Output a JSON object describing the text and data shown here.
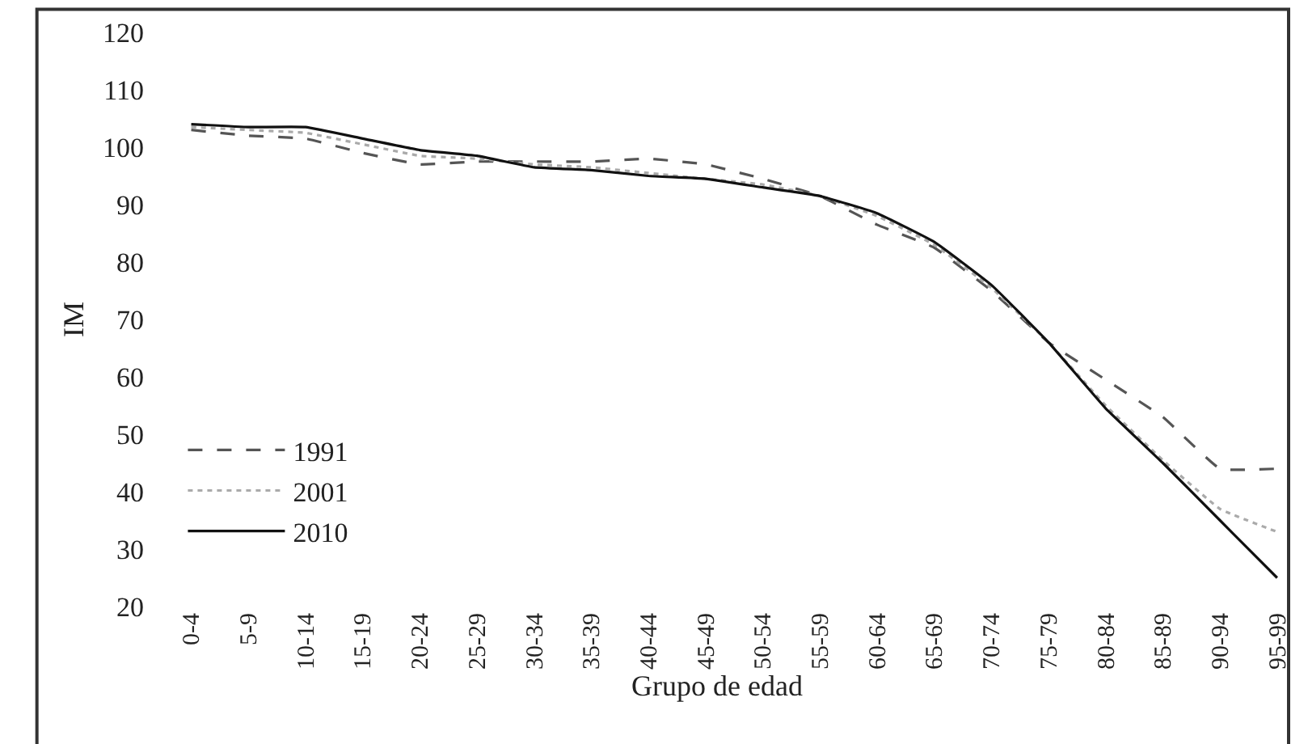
{
  "chart_data": {
    "type": "line",
    "xlabel": "Grupo de edad",
    "ylabel": "IM",
    "categories": [
      "0-4",
      "5-9",
      "10-14",
      "15-19",
      "20-24",
      "25-29",
      "30-34",
      "35-39",
      "40-44",
      "45-49",
      "50-54",
      "55-59",
      "60-64",
      "65-69",
      "70-74",
      "75-79",
      "80-84",
      "85-89",
      "90-94",
      "95-99"
    ],
    "series": [
      {
        "name": "1991",
        "color": "#555555",
        "line_style": "dashed",
        "values": [
          103,
          102,
          101.5,
          99,
          97,
          97.5,
          97.5,
          97.5,
          98,
          97,
          94.5,
          91.5,
          86.5,
          82.5,
          75,
          66,
          59.5,
          53,
          44,
          44
        ]
      },
      {
        "name": "2001",
        "color": "#aaaaaa",
        "line_style": "dotted",
        "values": [
          103.5,
          103,
          102.5,
          100.5,
          98.5,
          98,
          97,
          96.5,
          95.5,
          94.5,
          93.5,
          91.5,
          88,
          83,
          75.5,
          66,
          55,
          45.5,
          37,
          33
        ]
      },
      {
        "name": "2010",
        "color": "#111111",
        "line_style": "solid",
        "values": [
          104,
          103.5,
          103.5,
          101.5,
          99.5,
          98.5,
          96.5,
          96,
          95,
          94.5,
          93,
          91.5,
          88.5,
          83.5,
          76,
          66,
          54.5,
          45,
          35,
          25
        ]
      }
    ],
    "ylim": [
      20,
      120
    ],
    "yticks": [
      20,
      30,
      40,
      50,
      60,
      70,
      80,
      90,
      100,
      110,
      120
    ],
    "grid": false,
    "legend": "bottom left",
    "marker": "none"
  }
}
